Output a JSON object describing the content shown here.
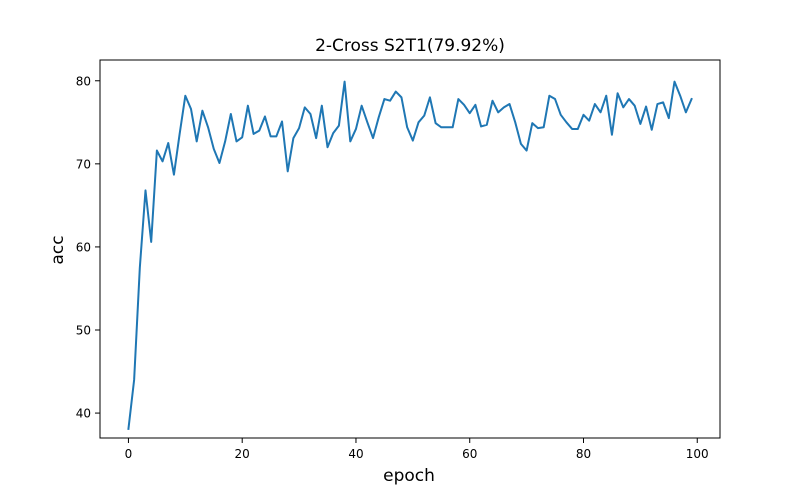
{
  "chart_data": {
    "type": "line",
    "title": "2-Cross S2T1(79.92%)",
    "xlabel": "epoch",
    "ylabel": "acc",
    "xlim": [
      -5,
      104
    ],
    "ylim": [
      37,
      82.5
    ],
    "xticks": [
      0,
      20,
      40,
      60,
      80,
      100
    ],
    "yticks": [
      40,
      50,
      60,
      70,
      80
    ],
    "grid": false,
    "legend": "none",
    "series": [
      {
        "color": "#1f77b4",
        "x": [
          0,
          1,
          2,
          3,
          4,
          5,
          6,
          7,
          8,
          9,
          10,
          11,
          12,
          13,
          14,
          15,
          16,
          17,
          18,
          19,
          20,
          21,
          22,
          23,
          24,
          25,
          26,
          27,
          28,
          29,
          30,
          31,
          32,
          33,
          34,
          35,
          36,
          37,
          38,
          39,
          40,
          41,
          42,
          43,
          44,
          45,
          46,
          47,
          48,
          49,
          50,
          51,
          52,
          53,
          54,
          55,
          56,
          57,
          58,
          59,
          60,
          61,
          62,
          63,
          64,
          65,
          66,
          67,
          68,
          69,
          70,
          71,
          72,
          73,
          74,
          75,
          76,
          77,
          78,
          79,
          80,
          81,
          82,
          83,
          84,
          85,
          86,
          87,
          88,
          89,
          90,
          91,
          92,
          93,
          94,
          95,
          96,
          97,
          98,
          99
        ],
        "y": [
          38.1,
          44.0,
          57.5,
          66.8,
          60.6,
          71.6,
          70.3,
          72.5,
          68.7,
          73.6,
          78.2,
          76.6,
          72.7,
          76.4,
          74.4,
          71.8,
          70.1,
          72.7,
          76.0,
          72.7,
          73.2,
          77.0,
          73.6,
          74.0,
          75.7,
          73.3,
          73.3,
          75.1,
          69.1,
          73.1,
          74.3,
          76.8,
          76.0,
          73.1,
          77.0,
          72.0,
          73.7,
          74.6,
          79.9,
          72.7,
          74.2,
          77.0,
          75.0,
          73.1,
          75.6,
          77.8,
          77.6,
          78.7,
          78.0,
          74.4,
          72.8,
          75.0,
          75.8,
          78.0,
          74.9,
          74.4,
          74.4,
          74.4,
          77.8,
          77.1,
          76.1,
          77.1,
          74.5,
          74.7,
          77.6,
          76.2,
          76.8,
          77.2,
          75.0,
          72.4,
          71.6,
          74.9,
          74.3,
          74.4,
          78.2,
          77.8,
          75.9,
          75.0,
          74.2,
          74.2,
          75.9,
          75.2,
          77.2,
          76.2,
          78.2,
          73.5,
          78.5,
          76.8,
          77.8,
          77.0,
          74.8,
          76.9,
          74.1,
          77.2,
          77.4,
          75.5,
          79.9,
          78.2,
          76.2,
          77.8
        ]
      }
    ]
  }
}
